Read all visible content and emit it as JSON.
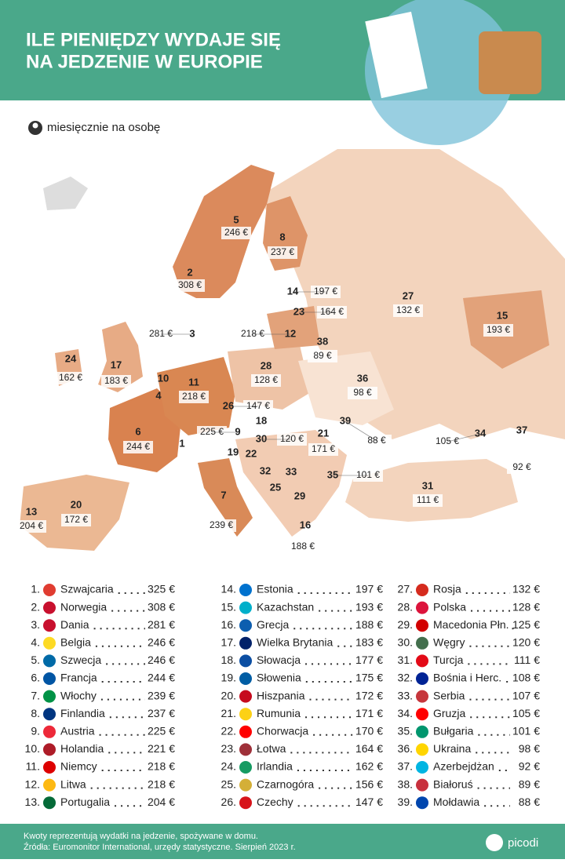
{
  "header": {
    "title_lines": [
      "ILE PIENIĘDZY WYDAJE SIĘ",
      "NA JEDZENIE W EUROPIE"
    ]
  },
  "legend": "miesięcznie na osobę",
  "map": {
    "labels": [
      {
        "rank": "5",
        "value": "246 €"
      },
      {
        "rank": "8",
        "value": "237 €"
      },
      {
        "rank": "2",
        "value": "308 €"
      },
      {
        "rank": "14",
        "value": "197 €"
      },
      {
        "rank": "23",
        "value": "164 €"
      },
      {
        "rank": "27",
        "value": "132 €"
      },
      {
        "rank": "15",
        "value": "193 €"
      },
      {
        "rank": "3",
        "value": "281 €"
      },
      {
        "rank": "12",
        "value": "218 €"
      },
      {
        "rank": "38",
        "value": "89 €"
      },
      {
        "rank": "24",
        "value": "162 €"
      },
      {
        "rank": "17",
        "value": "183 €"
      },
      {
        "rank": "28",
        "value": "128 €"
      },
      {
        "rank": "36",
        "value": "98 €"
      },
      {
        "rank": "10"
      },
      {
        "rank": "11",
        "value": "218 €"
      },
      {
        "rank": "4"
      },
      {
        "rank": "26",
        "value": "147 €"
      },
      {
        "rank": "18"
      },
      {
        "rank": "39",
        "value": "88 €"
      },
      {
        "rank": "6",
        "value": "244 €"
      },
      {
        "rank": "9",
        "value": "225 €"
      },
      {
        "rank": "1"
      },
      {
        "rank": "30",
        "value": "120 €"
      },
      {
        "rank": "21",
        "value": "171 €"
      },
      {
        "rank": "34",
        "value": "105 €"
      },
      {
        "rank": "37",
        "value": "92 €"
      },
      {
        "rank": "19"
      },
      {
        "rank": "22"
      },
      {
        "rank": "32"
      },
      {
        "rank": "33"
      },
      {
        "rank": "35",
        "value": "101 €"
      },
      {
        "rank": "25"
      },
      {
        "rank": "31",
        "value": "111 €"
      },
      {
        "rank": "29"
      },
      {
        "rank": "13",
        "value": "204 €"
      },
      {
        "rank": "20",
        "value": "172 €"
      },
      {
        "rank": "7",
        "value": "239 €"
      },
      {
        "rank": "16",
        "value": "188 €"
      }
    ]
  },
  "ranking": [
    {
      "rank": "1.",
      "country": "Szwajcaria",
      "value": "325 €"
    },
    {
      "rank": "2.",
      "country": "Norwegia",
      "value": "308 €"
    },
    {
      "rank": "3.",
      "country": "Dania",
      "value": "281 €"
    },
    {
      "rank": "4.",
      "country": "Belgia",
      "value": "246 €"
    },
    {
      "rank": "5.",
      "country": "Szwecja",
      "value": "246 €"
    },
    {
      "rank": "6.",
      "country": "Francja",
      "value": "244 €"
    },
    {
      "rank": "7.",
      "country": "Włochy",
      "value": "239 €"
    },
    {
      "rank": "8.",
      "country": "Finlandia",
      "value": "237 €"
    },
    {
      "rank": "9.",
      "country": "Austria",
      "value": "225 €"
    },
    {
      "rank": "10.",
      "country": "Holandia",
      "value": "221 €"
    },
    {
      "rank": "11.",
      "country": "Niemcy",
      "value": "218 €"
    },
    {
      "rank": "12.",
      "country": "Litwa",
      "value": "218 €"
    },
    {
      "rank": "13.",
      "country": "Portugalia",
      "value": "204 €"
    },
    {
      "rank": "14.",
      "country": "Estonia",
      "value": "197 €"
    },
    {
      "rank": "15.",
      "country": "Kazachstan",
      "value": "193 €"
    },
    {
      "rank": "16.",
      "country": "Grecja",
      "value": "188 €"
    },
    {
      "rank": "17.",
      "country": "Wielka Brytania",
      "value": "183 €"
    },
    {
      "rank": "18.",
      "country": "Słowacja",
      "value": "177 €"
    },
    {
      "rank": "19.",
      "country": "Słowenia",
      "value": "175 €"
    },
    {
      "rank": "20.",
      "country": "Hiszpania",
      "value": "172 €"
    },
    {
      "rank": "21.",
      "country": "Rumunia",
      "value": "171 €"
    },
    {
      "rank": "22.",
      "country": "Chorwacja",
      "value": "170 €"
    },
    {
      "rank": "23.",
      "country": "Łotwa",
      "value": "164 €"
    },
    {
      "rank": "24.",
      "country": "Irlandia",
      "value": "162 €"
    },
    {
      "rank": "25.",
      "country": "Czarnogóra",
      "value": "156 €"
    },
    {
      "rank": "26.",
      "country": "Czechy",
      "value": "147 €"
    },
    {
      "rank": "27.",
      "country": "Rosja",
      "value": "132 €"
    },
    {
      "rank": "28.",
      "country": "Polska",
      "value": "128 €"
    },
    {
      "rank": "29.",
      "country": "Macedonia Płn.",
      "value": "125 €"
    },
    {
      "rank": "30.",
      "country": "Węgry",
      "value": "120 €"
    },
    {
      "rank": "31.",
      "country": "Turcja",
      "value": "111 €"
    },
    {
      "rank": "32.",
      "country": "Bośnia i Herc.",
      "value": "108 €"
    },
    {
      "rank": "33.",
      "country": "Serbia",
      "value": "107 €"
    },
    {
      "rank": "34.",
      "country": "Gruzja",
      "value": "105 €"
    },
    {
      "rank": "35.",
      "country": "Bułgaria",
      "value": "101 €"
    },
    {
      "rank": "36.",
      "country": "Ukraina",
      "value": "98 €"
    },
    {
      "rank": "37.",
      "country": "Azerbejdżan",
      "value": "92 €"
    },
    {
      "rank": "38.",
      "country": "Białoruś",
      "value": "89 €"
    },
    {
      "rank": "39.",
      "country": "Mołdawia",
      "value": "88 €"
    }
  ],
  "footer": {
    "lines": [
      "Kwoty reprezentują wydatki na jedzenie, spożywane w domu.",
      "Źródła: Euromonitor International, urzędy statystyczne. Sierpień 2023 r."
    ]
  },
  "logo": "picodi"
}
